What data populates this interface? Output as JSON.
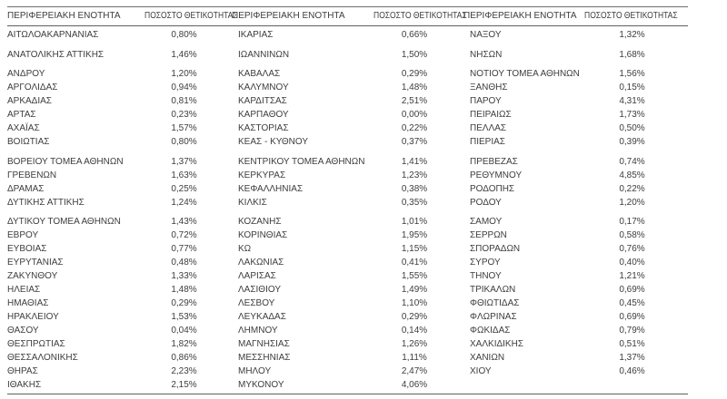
{
  "document": {
    "type": "positivity-table",
    "colors": {
      "text": "#3d3d3d",
      "rule": "#5f5f5f",
      "background": "#ffffff"
    }
  },
  "table": {
    "header": {
      "region_label": "ΠΕΡΙΦΕΡΕΙΑΚΗ ΕΝΟΤΗΤΑ",
      "positivity_label": "ΠΟΣΟΣΤΟ ΘΕΤΙΚΟΤΗΤΑΣ"
    },
    "group_gap_before_row_indexes": [
      1,
      2,
      8,
      12
    ],
    "columns": [
      {
        "rows": [
          {
            "name": "ΑΙΤΩΛΟΑΚΑΡΝΑΝΙΑΣ",
            "value": "0,80%"
          },
          {
            "name": "ΑΝΑΤΟΛΙΚΗΣ ΑΤΤΙΚΗΣ",
            "value": "1,46%"
          },
          {
            "name": "ΑΝΔΡΟΥ",
            "value": "1,20%"
          },
          {
            "name": "ΑΡΓΟΛΙΔΑΣ",
            "value": "0,94%"
          },
          {
            "name": "ΑΡΚΑΔΙΑΣ",
            "value": "0,81%"
          },
          {
            "name": "ΑΡΤΑΣ",
            "value": "0,23%"
          },
          {
            "name": "ΑΧΑΪΑΣ",
            "value": "1,57%"
          },
          {
            "name": "ΒΟΙΩΤΙΑΣ",
            "value": "0,80%"
          },
          {
            "name": "ΒΟΡΕΙΟΥ ΤΟΜΕΑ ΑΘΗΝΩΝ",
            "value": "1,37%"
          },
          {
            "name": "ΓΡΕΒΕΝΩΝ",
            "value": "1,63%"
          },
          {
            "name": "ΔΡΑΜΑΣ",
            "value": "0,25%"
          },
          {
            "name": "ΔΥΤΙΚΗΣ ΑΤΤΙΚΗΣ",
            "value": "1,24%"
          },
          {
            "name": "ΔΥΤΙΚΟΥ ΤΟΜΕΑ ΑΘΗΝΩΝ",
            "value": "1,43%"
          },
          {
            "name": "ΕΒΡΟΥ",
            "value": "0,72%"
          },
          {
            "name": "ΕΥΒΟΙΑΣ",
            "value": "0,77%"
          },
          {
            "name": "ΕΥΡΥΤΑΝΙΑΣ",
            "value": "0,48%"
          },
          {
            "name": "ΖΑΚΥΝΘΟΥ",
            "value": "1,33%"
          },
          {
            "name": "ΗΛΕΙΑΣ",
            "value": "1,48%"
          },
          {
            "name": "ΗΜΑΘΙΑΣ",
            "value": "0,29%"
          },
          {
            "name": "ΗΡΑΚΛΕΙΟΥ",
            "value": "1,53%"
          },
          {
            "name": "ΘΑΣΟΥ",
            "value": "0,04%"
          },
          {
            "name": "ΘΕΣΠΡΩΤΙΑΣ",
            "value": "1,82%"
          },
          {
            "name": "ΘΕΣΣΑΛΟΝΙΚΗΣ",
            "value": "0,86%"
          },
          {
            "name": "ΘΗΡΑΣ",
            "value": "2,23%"
          },
          {
            "name": "ΙΘΑΚΗΣ",
            "value": "2,15%"
          }
        ]
      },
      {
        "rows": [
          {
            "name": "ΙΚΑΡΙΑΣ",
            "value": "0,66%"
          },
          {
            "name": "ΙΩΑΝΝΙΝΩΝ",
            "value": "1,50%"
          },
          {
            "name": "ΚΑΒΑΛΑΣ",
            "value": "0,29%"
          },
          {
            "name": "ΚΑΛΥΜΝΟΥ",
            "value": "1,48%"
          },
          {
            "name": "ΚΑΡΔΙΤΣΑΣ",
            "value": "2,51%"
          },
          {
            "name": "ΚΑΡΠΑΘΟΥ",
            "value": "0,00%"
          },
          {
            "name": "ΚΑΣΤΟΡΙΑΣ",
            "value": "0,22%"
          },
          {
            "name": "ΚΕΑΣ - ΚΥΘΝΟΥ",
            "value": "0,37%"
          },
          {
            "name": "ΚΕΝΤΡΙΚΟΥ ΤΟΜΕΑ ΑΘΗΝΩΝ",
            "value": "1,41%"
          },
          {
            "name": "ΚΕΡΚΥΡΑΣ",
            "value": "1,23%"
          },
          {
            "name": "ΚΕΦΑΛΛΗΝΙΑΣ",
            "value": "0,38%"
          },
          {
            "name": "ΚΙΛΚΙΣ",
            "value": "0,35%"
          },
          {
            "name": "ΚΟΖΑΝΗΣ",
            "value": "1,01%"
          },
          {
            "name": "ΚΟΡΙΝΘΙΑΣ",
            "value": "1,95%"
          },
          {
            "name": "ΚΩ",
            "value": "1,15%"
          },
          {
            "name": "ΛΑΚΩΝΙΑΣ",
            "value": "0,41%"
          },
          {
            "name": "ΛΑΡΙΣΑΣ",
            "value": "1,55%"
          },
          {
            "name": "ΛΑΣΙΘΙΟΥ",
            "value": "1,49%"
          },
          {
            "name": "ΛΕΣΒΟΥ",
            "value": "1,10%"
          },
          {
            "name": "ΛΕΥΚΑΔΑΣ",
            "value": "0,29%"
          },
          {
            "name": "ΛΗΜΝΟΥ",
            "value": "0,14%"
          },
          {
            "name": "ΜΑΓΝΗΣΙΑΣ",
            "value": "1,26%"
          },
          {
            "name": "ΜΕΣΣΗΝΙΑΣ",
            "value": "1,11%"
          },
          {
            "name": "ΜΗΛΟΥ",
            "value": "2,47%"
          },
          {
            "name": "ΜΥΚΟΝΟΥ",
            "value": "4,06%"
          }
        ]
      },
      {
        "rows": [
          {
            "name": "ΝΑΞΟΥ",
            "value": "1,32%"
          },
          {
            "name": "ΝΗΣΩΝ",
            "value": "1,68%"
          },
          {
            "name": "ΝΟΤΙΟΥ ΤΟΜΕΑ ΑΘΗΝΩΝ",
            "value": "1,56%"
          },
          {
            "name": "ΞΑΝΘΗΣ",
            "value": "0,15%"
          },
          {
            "name": "ΠΑΡΟΥ",
            "value": "4,31%"
          },
          {
            "name": "ΠΕΙΡΑΙΩΣ",
            "value": "1,73%"
          },
          {
            "name": "ΠΕΛΛΑΣ",
            "value": "0,50%"
          },
          {
            "name": "ΠΙΕΡΙΑΣ",
            "value": "0,39%"
          },
          {
            "name": "ΠΡΕΒΕΖΑΣ",
            "value": "0,74%"
          },
          {
            "name": "ΡΕΘΥΜΝΟΥ",
            "value": "4,85%"
          },
          {
            "name": "ΡΟΔΟΠΗΣ",
            "value": "0,22%"
          },
          {
            "name": "ΡΟΔΟΥ",
            "value": "1,20%"
          },
          {
            "name": "ΣΑΜΟΥ",
            "value": "0,17%"
          },
          {
            "name": "ΣΕΡΡΩΝ",
            "value": "0,58%"
          },
          {
            "name": "ΣΠΟΡΑΔΩΝ",
            "value": "0,76%"
          },
          {
            "name": "ΣΥΡΟΥ",
            "value": "0,40%"
          },
          {
            "name": "ΤΗΝΟΥ",
            "value": "1,21%"
          },
          {
            "name": "ΤΡΙΚΑΛΩΝ",
            "value": "0,69%"
          },
          {
            "name": "ΦΘΙΩΤΙΔΑΣ",
            "value": "0,45%"
          },
          {
            "name": "ΦΛΩΡΙΝΑΣ",
            "value": "0,69%"
          },
          {
            "name": "ΦΩΚΙΔΑΣ",
            "value": "0,79%"
          },
          {
            "name": "ΧΑΛΚΙΔΙΚΗΣ",
            "value": "0,51%"
          },
          {
            "name": "ΧΑΝΙΩΝ",
            "value": "1,37%"
          },
          {
            "name": "ΧΙΟΥ",
            "value": "0,46%"
          }
        ]
      }
    ]
  }
}
